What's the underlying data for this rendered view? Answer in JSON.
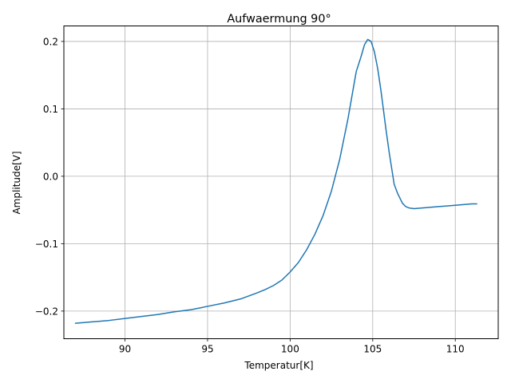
{
  "chart_data": {
    "type": "line",
    "title": "Aufwaermung 90°",
    "xlabel": "Temperatur[K]",
    "ylabel": "Amplitude[V]",
    "xlim": [
      86.3,
      112.6
    ],
    "ylim": [
      -0.241,
      0.223
    ],
    "xticks": [
      90,
      95,
      100,
      105,
      110
    ],
    "yticks": [
      0.2,
      0.1,
      0.0,
      -0.1,
      -0.2
    ],
    "xtick_labels": [
      "90",
      "95",
      "100",
      "105",
      "110"
    ],
    "ytick_labels": [
      "0.2",
      "0.1",
      "0.0",
      "−0.1",
      "−0.2"
    ],
    "grid": true,
    "legend": "none",
    "series": [
      {
        "color": "#1f77b4",
        "x": [
          87.0,
          88.0,
          89.0,
          90.0,
          91.0,
          92.0,
          93.0,
          94.0,
          95.0,
          96.0,
          97.0,
          98.0,
          98.5,
          99.0,
          99.5,
          100.0,
          100.5,
          101.0,
          101.5,
          102.0,
          102.5,
          103.0,
          103.5,
          104.0,
          104.3,
          104.5,
          104.7,
          104.9,
          105.1,
          105.3,
          105.5,
          105.8,
          106.0,
          106.3,
          106.5,
          106.8,
          107.0,
          107.2,
          107.5,
          108.0,
          108.5,
          109.0,
          109.5,
          110.0,
          110.5,
          111.0,
          111.3
        ],
        "y": [
          -0.218,
          -0.216,
          -0.214,
          -0.211,
          -0.208,
          -0.205,
          -0.201,
          -0.198,
          -0.193,
          -0.188,
          -0.182,
          -0.173,
          -0.168,
          -0.162,
          -0.154,
          -0.142,
          -0.128,
          -0.109,
          -0.086,
          -0.058,
          -0.022,
          0.025,
          0.085,
          0.155,
          0.178,
          0.195,
          0.203,
          0.2,
          0.185,
          0.16,
          0.127,
          0.07,
          0.035,
          -0.012,
          -0.025,
          -0.04,
          -0.045,
          -0.047,
          -0.048,
          -0.047,
          -0.046,
          -0.045,
          -0.044,
          -0.043,
          -0.042,
          -0.041,
          -0.041
        ]
      }
    ]
  }
}
